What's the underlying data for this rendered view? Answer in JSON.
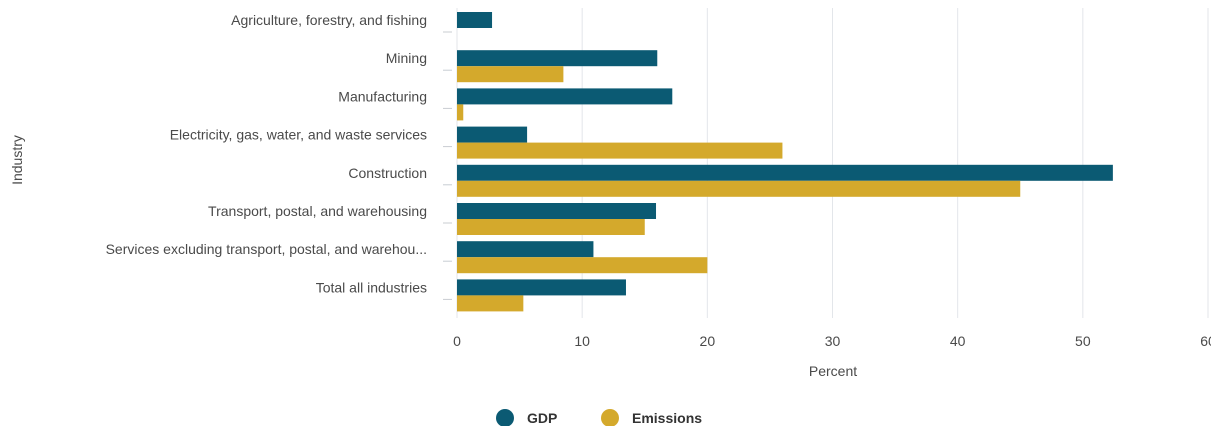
{
  "chart_data": {
    "type": "bar",
    "orientation": "horizontal",
    "categories": [
      "Agriculture, forestry, and fishing",
      "Mining",
      "Manufacturing",
      "Electricity, gas, water, and waste services",
      "Construction",
      "Transport, postal, and warehousing",
      "Services excluding transport, postal, and warehou...",
      "Total all industries"
    ],
    "series": [
      {
        "name": "GDP",
        "color": "#0b5a73",
        "values": [
          2.8,
          16.0,
          17.2,
          5.6,
          52.4,
          15.9,
          10.9,
          13.5
        ]
      },
      {
        "name": "Emissions",
        "color": "#d4a92c",
        "values": [
          0.0,
          8.5,
          0.5,
          26.0,
          45.0,
          15.0,
          20.0,
          5.3
        ]
      }
    ],
    "xlabel": "Percent",
    "ylabel": "Industry",
    "xlim": [
      0,
      60
    ],
    "xticks": [
      0,
      10,
      20,
      30,
      40,
      50,
      60
    ],
    "grid": true,
    "legend_position": "bottom-center"
  }
}
